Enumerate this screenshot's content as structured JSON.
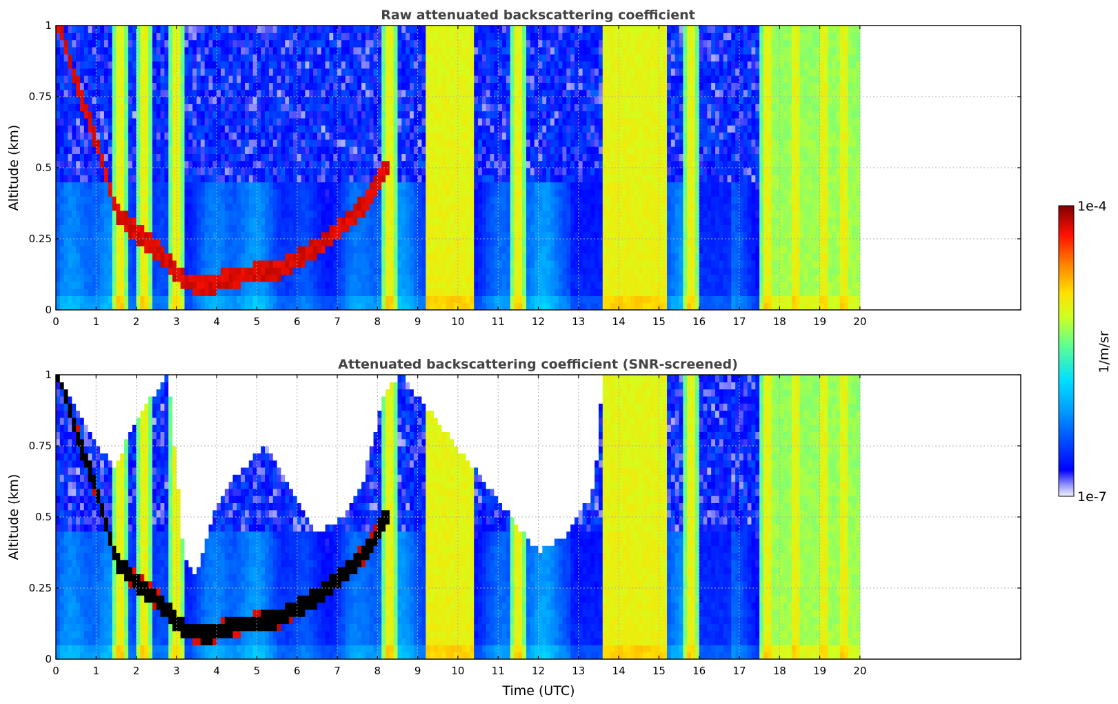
{
  "figure": {
    "colormap": "jet",
    "colors": {
      "title": "#444444",
      "frame": "#000000",
      "grid": "#b0b0b0",
      "saturated": "#000000",
      "screened": "#ffffff"
    }
  },
  "chart_data": [
    {
      "type": "heatmap",
      "title": "Raw attenuated backscattering coefficient",
      "xlabel": "",
      "ylabel": "Altitude (km)",
      "xlim": [
        0,
        24
      ],
      "ylim": [
        0,
        1
      ],
      "x_ticks": [
        "0",
        "1",
        "2",
        "3",
        "4",
        "5",
        "6",
        "7",
        "8",
        "9",
        "10",
        "11",
        "12",
        "13",
        "14",
        "15",
        "16",
        "17",
        "18",
        "19",
        "20"
      ],
      "y_ticks": [
        "0",
        "0.25",
        "0.5",
        "0.75",
        "1"
      ],
      "data_extent_x": [
        0,
        20
      ],
      "grid": true,
      "features": {
        "descending_layer_top": [
          [
            0.1,
            1.0
          ],
          [
            0.5,
            0.8
          ],
          [
            1.0,
            0.6
          ],
          [
            1.5,
            0.35
          ],
          [
            2.0,
            0.27
          ],
          [
            2.6,
            0.2
          ],
          [
            3.2,
            0.1
          ],
          [
            3.8,
            0.09
          ],
          [
            4.5,
            0.12
          ],
          [
            5.5,
            0.14
          ],
          [
            6.5,
            0.22
          ],
          [
            7.3,
            0.32
          ],
          [
            7.8,
            0.39
          ],
          [
            8.2,
            0.5
          ]
        ],
        "high_signal_columns": [
          1.6,
          2.2,
          3.0,
          8.3,
          9.5,
          10.0,
          11.5,
          13.8,
          14.5,
          15.0,
          15.8,
          17.7,
          18.4,
          19.1,
          19.6
        ]
      }
    },
    {
      "type": "heatmap",
      "title": "Attenuated backscattering coefficient (SNR-screened)",
      "xlabel": "Time (UTC)",
      "ylabel": "Altitude (km)",
      "xlim": [
        0,
        24
      ],
      "ylim": [
        0,
        1
      ],
      "x_ticks": [
        "0",
        "1",
        "2",
        "3",
        "4",
        "5",
        "6",
        "7",
        "8",
        "9",
        "10",
        "11",
        "12",
        "13",
        "14",
        "15",
        "16",
        "17",
        "18",
        "19",
        "20"
      ],
      "y_ticks": [
        "0",
        "0.25",
        "0.5",
        "0.75",
        "1"
      ],
      "data_extent_x": [
        0,
        20
      ],
      "grid": true,
      "screened_top": [
        [
          0,
          1
        ],
        [
          0.5,
          0.9
        ],
        [
          1.0,
          0.75
        ],
        [
          1.5,
          0.68
        ],
        [
          2.0,
          0.85
        ],
        [
          2.8,
          1.0
        ],
        [
          3.2,
          0.35
        ],
        [
          3.5,
          0.3
        ],
        [
          4.0,
          0.55
        ],
        [
          4.5,
          0.65
        ],
        [
          5.2,
          0.75
        ],
        [
          5.8,
          0.62
        ],
        [
          6.5,
          0.45
        ],
        [
          7.0,
          0.48
        ],
        [
          7.6,
          0.6
        ],
        [
          8.2,
          0.95
        ],
        [
          8.6,
          1.0
        ],
        [
          12.0,
          0.38
        ],
        [
          12.8,
          0.45
        ],
        [
          13.4,
          0.6
        ],
        [
          13.6,
          1.0
        ],
        [
          20,
          1.0
        ]
      ]
    }
  ],
  "colorbar": {
    "label": "1/m/sr",
    "max_label": "1e-4",
    "min_label": "1e-7",
    "scale": "log"
  }
}
